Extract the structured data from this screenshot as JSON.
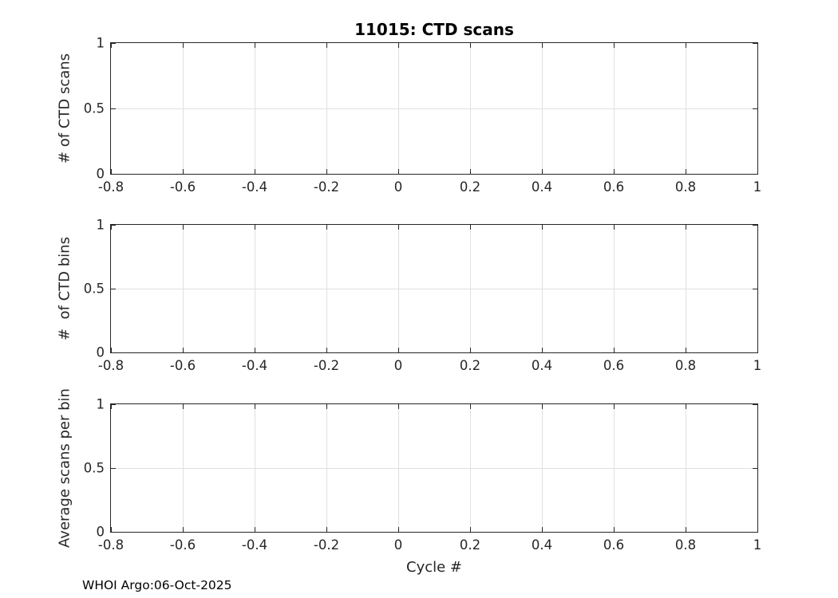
{
  "figure": {
    "title": "11015: CTD scans",
    "xlabel": "Cycle #",
    "footer": "WHOI Argo:06-Oct-2025"
  },
  "colors": {
    "background": "#ffffff",
    "axis": "#262626",
    "grid": "#e0e0e0",
    "title_text": "#000000"
  },
  "chart_data": [
    {
      "type": "line",
      "title": "11015: CTD scans",
      "ylabel": "# of CTD scans",
      "xlabel": "",
      "xlim": [
        -0.8,
        1
      ],
      "ylim": [
        0,
        1
      ],
      "xtick_values": [
        -0.8,
        -0.6,
        -0.4,
        -0.2,
        0,
        0.2,
        0.4,
        0.6,
        0.8,
        1
      ],
      "xtick_labels": [
        "-0.8",
        "-0.6",
        "-0.4",
        "-0.2",
        "0",
        "0.2",
        "0.4",
        "0.6",
        "0.8",
        "1"
      ],
      "ytick_values": [
        0,
        0.5,
        1
      ],
      "ytick_labels": [
        "0",
        "0.5",
        "1"
      ],
      "grid": true,
      "legend": null,
      "series": []
    },
    {
      "type": "line",
      "title": "",
      "ylabel": "#  of CTD bins",
      "xlabel": "",
      "xlim": [
        -0.8,
        1
      ],
      "ylim": [
        0,
        1
      ],
      "xtick_values": [
        -0.8,
        -0.6,
        -0.4,
        -0.2,
        0,
        0.2,
        0.4,
        0.6,
        0.8,
        1
      ],
      "xtick_labels": [
        "-0.8",
        "-0.6",
        "-0.4",
        "-0.2",
        "0",
        "0.2",
        "0.4",
        "0.6",
        "0.8",
        "1"
      ],
      "ytick_values": [
        0,
        0.5,
        1
      ],
      "ytick_labels": [
        "0",
        "0.5",
        "1"
      ],
      "grid": true,
      "legend": null,
      "series": []
    },
    {
      "type": "line",
      "title": "",
      "ylabel": "Average scans per bin",
      "xlabel": "Cycle #",
      "xlim": [
        -0.8,
        1
      ],
      "ylim": [
        0,
        1
      ],
      "xtick_values": [
        -0.8,
        -0.6,
        -0.4,
        -0.2,
        0,
        0.2,
        0.4,
        0.6,
        0.8,
        1
      ],
      "xtick_labels": [
        "-0.8",
        "-0.6",
        "-0.4",
        "-0.2",
        "0",
        "0.2",
        "0.4",
        "0.6",
        "0.8",
        "1"
      ],
      "ytick_values": [
        0,
        0.5,
        1
      ],
      "ytick_labels": [
        "0",
        "0.5",
        "1"
      ],
      "grid": true,
      "legend": null,
      "series": []
    }
  ]
}
